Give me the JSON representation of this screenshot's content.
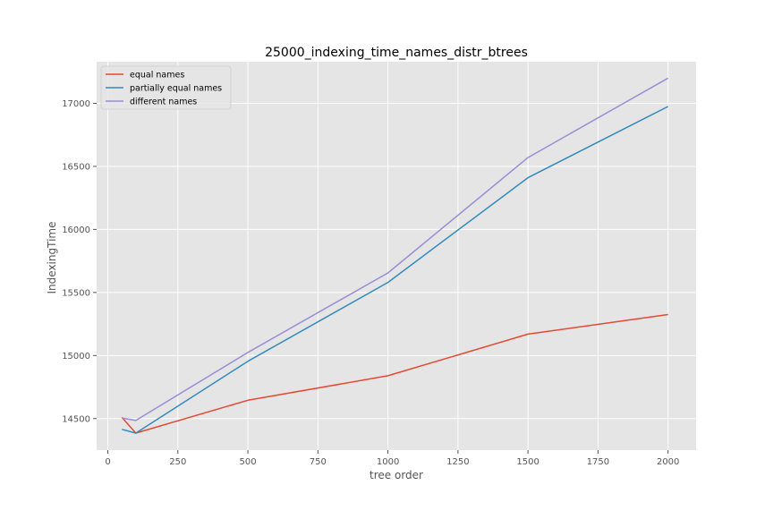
{
  "chart_data": {
    "type": "line",
    "title": "25000_indexing_time_names_distr_btrees",
    "xlabel": "tree order",
    "ylabel": "IndexingTime",
    "x": [
      50,
      100,
      500,
      1000,
      1500,
      2000
    ],
    "xlim": [
      -40,
      2100
    ],
    "ylim": [
      14250,
      17330
    ],
    "xticks": [
      0,
      250,
      500,
      750,
      1000,
      1250,
      1500,
      1750,
      2000
    ],
    "yticks": [
      14500,
      15000,
      15500,
      16000,
      16500,
      17000
    ],
    "grid": true,
    "legend_position": "upper-left",
    "series": [
      {
        "name": "equal names",
        "color": "#E24A33",
        "values": [
          14510,
          14385,
          14645,
          14840,
          15170,
          15325
        ]
      },
      {
        "name": "partially equal names",
        "color": "#348ABD",
        "values": [
          14415,
          14385,
          14955,
          15580,
          16410,
          16975
        ]
      },
      {
        "name": "different names",
        "color": "#988ED5",
        "values": [
          14505,
          14485,
          15025,
          15655,
          16570,
          17200
        ]
      }
    ]
  },
  "style": {
    "plot_background": "#E5E5E5",
    "grid_color": "#FFFFFF",
    "text_color": "#555555",
    "title_color": "#000000"
  }
}
